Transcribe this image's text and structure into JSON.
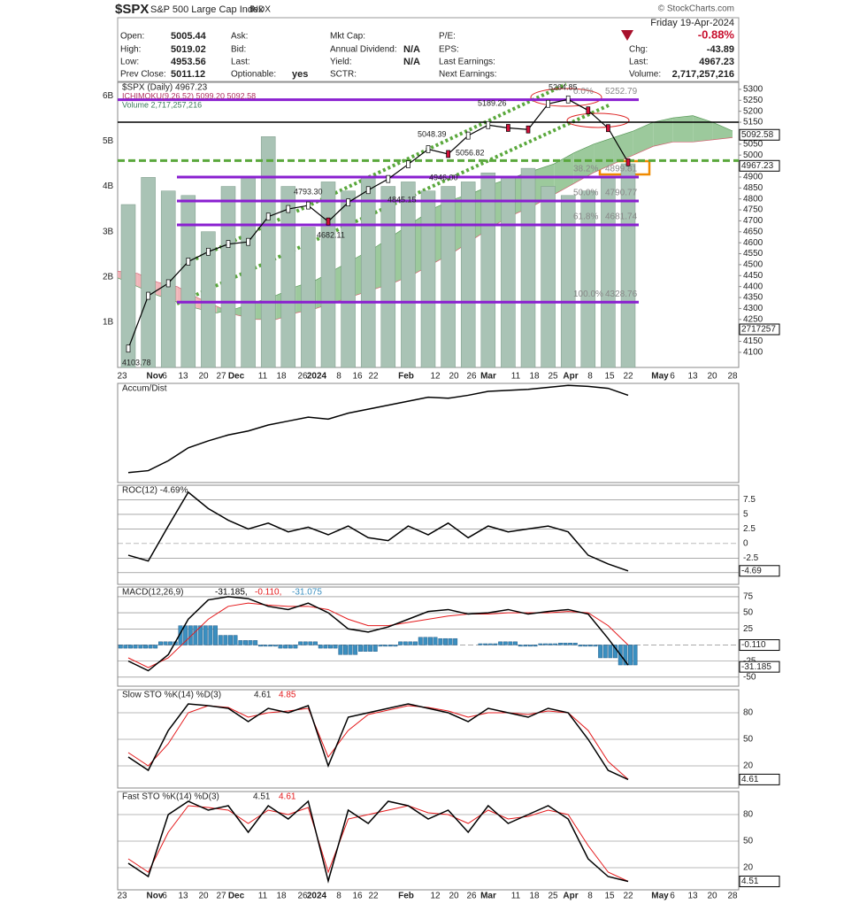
{
  "header": {
    "symbol": "$SPX",
    "name": "S&P 500 Large Cap Index",
    "exchange": "INDX",
    "date": "Friday 19-Apr-2024",
    "pct_change": "-0.88%",
    "watermark": "© StockCharts.com",
    "fields": [
      {
        "label": "Open:",
        "value": "5005.44"
      },
      {
        "label": "High:",
        "value": "5019.02"
      },
      {
        "label": "Low:",
        "value": "4953.56"
      },
      {
        "label": "Prev Close:",
        "value": "5011.12"
      },
      {
        "label": "Ask:"
      },
      {
        "label": "Bid:"
      },
      {
        "label": "Last:"
      },
      {
        "label": "Optionable:",
        "value": "yes"
      },
      {
        "label": "Mkt Cap:"
      },
      {
        "label": "Annual Dividend:",
        "value": "N/A"
      },
      {
        "label": "Yield:",
        "value": "N/A"
      },
      {
        "label": "SCTR:"
      },
      {
        "label": "P/E:"
      },
      {
        "label": "EPS:"
      },
      {
        "label": "Last Earnings:"
      },
      {
        "label": "Next Earnings:"
      },
      {
        "label": "Chg:",
        "value": "-43.89"
      },
      {
        "label": "Last:",
        "value": "4967.23"
      },
      {
        "label": "Volume:",
        "value": "2,717,257,216"
      }
    ]
  },
  "x_labels": [
    "23",
    "Nov",
    "6",
    "13",
    "20",
    "27",
    "Dec",
    "11",
    "18",
    "26",
    "2024",
    "8",
    "16",
    "22",
    "Feb",
    "12",
    "20",
    "26",
    "Mar",
    "11",
    "18",
    "25",
    "Apr",
    "8",
    "15",
    "22",
    "May",
    "6",
    "13",
    "20",
    "28"
  ],
  "chart_data": [
    {
      "type": "line",
      "title": "$SPX (Daily) 4967.23",
      "overlay": "ICHIMOKU(9,26,52) 5099.20 5092.58",
      "volume_title": "Volume 2,717,257,216",
      "ylim": [
        4031,
        5332
      ],
      "yticks": [
        4100,
        4150,
        4200,
        4250,
        4300,
        4350,
        4400,
        4450,
        4500,
        4550,
        4600,
        4650,
        4700,
        4750,
        4800,
        4850,
        4900,
        4950,
        5000,
        5050,
        5100,
        5150,
        5200,
        5250,
        5300
      ],
      "series": [
        {
          "name": "$SPX",
          "color": "#000000",
          "values": [
            4117,
            4358,
            4415,
            4514,
            4559,
            4594,
            4604,
            4719,
            4754,
            4770,
            4697,
            4784,
            4840,
            4891,
            4958,
            5027,
            5005,
            5089,
            5137,
            5124,
            5117,
            5234,
            5254,
            5204,
            5123,
            4967
          ]
        }
      ],
      "volume": {
        "color": "#a9c3b5",
        "values": [
          3600000000,
          4200000000,
          3900000000,
          3800000000,
          3000000000,
          4000000000,
          4200000000,
          5100000000,
          4000000000,
          3100000000,
          4100000000,
          3900000000,
          4200000000,
          4000000000,
          4100000000,
          3900000000,
          4000000000,
          4100000000,
          4300000000,
          4200000000,
          4400000000,
          4000000000,
          3800000000,
          3900000000,
          4200000000,
          4500000000
        ],
        "ylim": [
          0,
          6300000000
        ],
        "yticks": [
          {
            "value": 1000000000,
            "label": "1B"
          },
          {
            "value": 2000000000,
            "label": "2B"
          },
          {
            "value": 3000000000,
            "label": "3B"
          },
          {
            "value": 4000000000,
            "label": "4B"
          },
          {
            "value": 5000000000,
            "label": "5B"
          },
          {
            "value": 6000000000,
            "label": "6B"
          }
        ]
      },
      "cloud": {
        "span_a": [
          4440,
          4400,
          4360,
          4330,
          4300,
          4280,
          4300,
          4330,
          4360,
          4400,
          4430,
          4480,
          4530,
          4580,
          4640,
          4700,
          4760,
          4800,
          4830,
          4870,
          4900,
          4930,
          4960,
          5010,
          5050,
          5080,
          5110,
          5150,
          5170,
          5180,
          5150,
          5110
        ],
        "span_b": [
          4470,
          4460,
          4420,
          4400,
          4350,
          4310,
          4270,
          4250,
          4250,
          4280,
          4300,
          4330,
          4360,
          4390,
          4420,
          4460,
          4510,
          4560,
          4620,
          4680,
          4730,
          4770,
          4820,
          4870,
          4920,
          4960,
          5000,
          5040,
          5060,
          5060,
          5070,
          5080
        ],
        "up_color": "#9cc99c",
        "down_color": "#f0b4b8"
      },
      "fib_levels": [
        {
          "label": "0.0%",
          "value": 5252.79
        },
        {
          "label": "38.2%",
          "value": 4899.81
        },
        {
          "label": "50.0%",
          "value": 4790.77
        },
        {
          "label": "61.8%",
          "value": 4681.74
        },
        {
          "label": "100.0%",
          "value": 4328.76
        }
      ],
      "black_level": 5150,
      "green_level": 4975,
      "annotations": [
        "5264.85",
        "5189.26",
        "5048.39",
        "5056.82",
        "4946.00",
        "4793.30",
        "4845.15",
        "4682.11",
        "4103.78"
      ],
      "right_boxes": [
        "5092.58",
        "4967.23",
        "2717257"
      ]
    },
    {
      "type": "line",
      "title": "Accum/Dist",
      "ylim": [
        0,
        100
      ],
      "series": [
        {
          "name": "Accum/Dist",
          "color": "#000000",
          "values": [
            10,
            12,
            22,
            35,
            42,
            48,
            52,
            58,
            62,
            66,
            64,
            70,
            74,
            78,
            82,
            86,
            85,
            88,
            92,
            93,
            94,
            96,
            98,
            97,
            95,
            88
          ]
        }
      ]
    },
    {
      "type": "line",
      "title": "ROC(12) -4.69%",
      "ylim": [
        -7,
        10
      ],
      "yticks": [
        -5,
        -2.5,
        0,
        2.5,
        5,
        7.5
      ],
      "right_box": "-4.69",
      "series": [
        {
          "name": "ROC",
          "color": "#000000",
          "values": [
            -2,
            -3,
            3,
            8.8,
            6,
            4,
            2.5,
            3.5,
            2,
            2.8,
            1.5,
            3,
            1,
            0.5,
            3,
            1.5,
            3.5,
            1,
            3,
            2,
            2.5,
            3,
            2,
            -2,
            -3.5,
            -4.69
          ]
        }
      ]
    },
    {
      "type": "macd",
      "title": "MACD(12,26,9)",
      "ylim": [
        -64,
        90
      ],
      "yticks": [
        -50,
        -25,
        0,
        25,
        50,
        75
      ],
      "right_boxes": [
        "-0.110",
        "-31.185"
      ],
      "series": [
        {
          "name": "-31.185,",
          "color": "#000000",
          "values": [
            -25,
            -40,
            -15,
            40,
            70,
            75,
            72,
            60,
            55,
            65,
            50,
            25,
            20,
            28,
            40,
            52,
            55,
            48,
            50,
            55,
            48,
            52,
            55,
            48,
            10,
            -31.185
          ]
        },
        {
          "name": "-0.110,",
          "color": "#e41a1c",
          "values": [
            -20,
            -35,
            -20,
            10,
            40,
            60,
            65,
            62,
            60,
            60,
            55,
            40,
            30,
            30,
            35,
            40,
            45,
            48,
            48,
            50,
            50,
            50,
            52,
            50,
            30,
            -0.11
          ]
        },
        {
          "name": "-31.075",
          "color": "#3a8fc0",
          "values": [
            -5,
            -5,
            5,
            30,
            30,
            15,
            7,
            -2,
            -5,
            5,
            -5,
            -15,
            -10,
            -2,
            5,
            12,
            10,
            0,
            2,
            5,
            -2,
            2,
            3,
            -2,
            -20,
            -31.075
          ]
        }
      ]
    },
    {
      "type": "line",
      "title": "Slow STO %K(14) %D(3)",
      "ylim": [
        -5,
        106
      ],
      "yticks": [
        20,
        50,
        80
      ],
      "right_box": "4.61",
      "series": [
        {
          "name": "4.61",
          "color": "#000000",
          "values": [
            30,
            15,
            60,
            90,
            88,
            85,
            70,
            85,
            80,
            88,
            20,
            75,
            80,
            85,
            90,
            85,
            80,
            70,
            85,
            80,
            75,
            85,
            80,
            50,
            15,
            4.61
          ]
        },
        {
          "name": "4.85",
          "color": "#e41a1c",
          "values": [
            35,
            20,
            45,
            80,
            88,
            86,
            75,
            80,
            82,
            85,
            30,
            60,
            78,
            83,
            88,
            86,
            82,
            75,
            80,
            80,
            78,
            82,
            80,
            60,
            25,
            4.85
          ]
        }
      ]
    },
    {
      "type": "line",
      "title": "Fast STO %K(14) %D(3)",
      "ylim": [
        -5,
        106
      ],
      "yticks": [
        20,
        50,
        80
      ],
      "right_box": "4.51",
      "series": [
        {
          "name": "4.51",
          "color": "#000000",
          "values": [
            25,
            10,
            80,
            95,
            85,
            90,
            60,
            90,
            75,
            95,
            5,
            85,
            70,
            95,
            90,
            75,
            85,
            60,
            90,
            70,
            80,
            90,
            75,
            30,
            10,
            4.51
          ]
        },
        {
          "name": "4.61",
          "color": "#e41a1c",
          "values": [
            30,
            15,
            60,
            90,
            88,
            85,
            70,
            85,
            80,
            88,
            15,
            75,
            80,
            85,
            90,
            82,
            80,
            70,
            85,
            75,
            78,
            85,
            80,
            45,
            15,
            4.61
          ]
        }
      ]
    }
  ]
}
